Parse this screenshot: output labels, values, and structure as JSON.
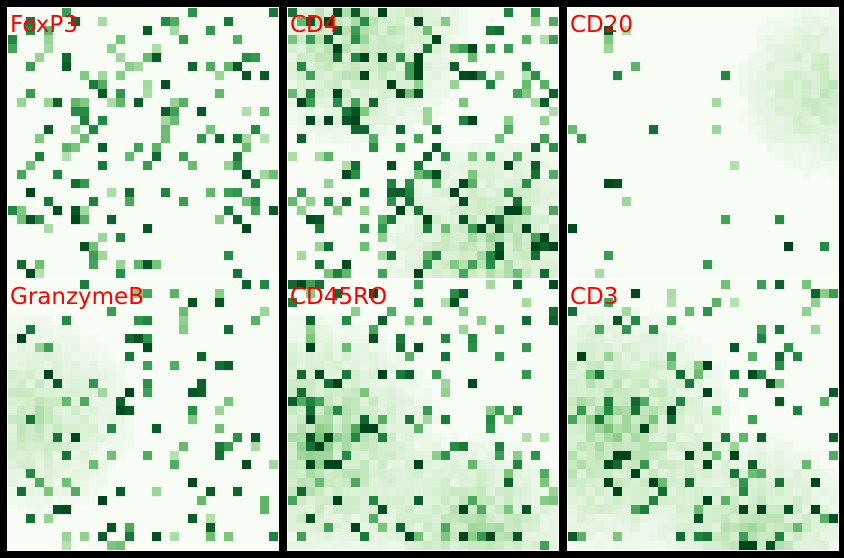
{
  "colors": {
    "background": "#000000",
    "panel_border": "#ffffff",
    "title_color": "#ff0000",
    "cmap": [
      "#f7fcf5",
      "#c7e9c0",
      "#74c476",
      "#238b45",
      "#00441b"
    ]
  },
  "chart_data": {
    "type": "heatmap",
    "grid": {
      "rows": 2,
      "cols": 3
    },
    "cells_per_side": 30,
    "colormap": "Greens",
    "value_range": [
      0,
      1
    ],
    "panels": [
      {
        "title": "FoxP3",
        "seed": 11,
        "density": 0.16,
        "features": []
      },
      {
        "title": "CD4",
        "seed": 23,
        "density": 0.2,
        "features": [
          {
            "center": [
              0.25,
              0.1
            ],
            "radius": 0.45,
            "gain": 0.45
          },
          {
            "center": [
              0.75,
              0.9
            ],
            "radius": 0.45,
            "gain": 0.45
          }
        ]
      },
      {
        "title": "CD20",
        "seed": 37,
        "density": 0.02,
        "features": [
          {
            "center": [
              0.95,
              0.3
            ],
            "radius": 0.35,
            "gain": 0.35
          }
        ]
      },
      {
        "title": "GranzymeB",
        "seed": 41,
        "density": 0.14,
        "features": [
          {
            "center": [
              0.1,
              0.5
            ],
            "radius": 0.4,
            "gain": 0.35
          }
        ]
      },
      {
        "title": "CD45RO",
        "seed": 53,
        "density": 0.14,
        "features": [
          {
            "center": [
              0.1,
              0.6
            ],
            "radius": 0.5,
            "gain": 0.5
          },
          {
            "center": [
              0.7,
              0.95
            ],
            "radius": 0.4,
            "gain": 0.45
          }
        ]
      },
      {
        "title": "CD3",
        "seed": 67,
        "density": 0.14,
        "features": [
          {
            "center": [
              0.15,
              0.55
            ],
            "radius": 0.5,
            "gain": 0.5
          },
          {
            "center": [
              0.7,
              0.95
            ],
            "radius": 0.4,
            "gain": 0.45
          }
        ]
      }
    ]
  }
}
